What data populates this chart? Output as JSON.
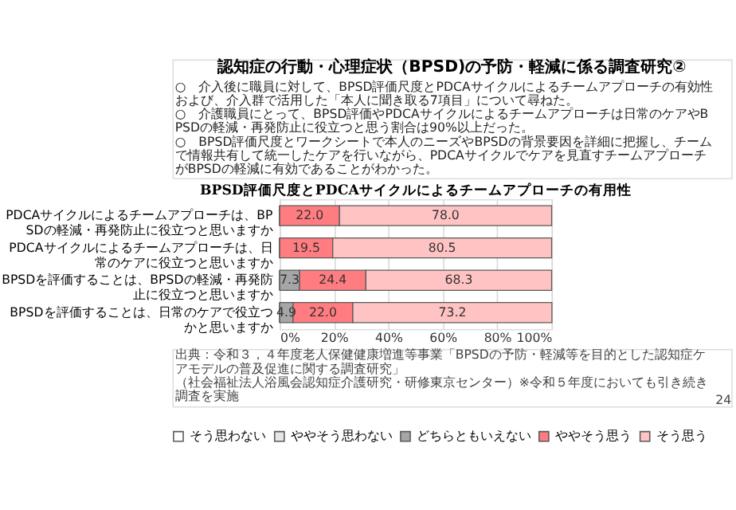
{
  "chart_data": {
    "type": "bar",
    "orientation": "horizontal",
    "stacked": true,
    "title": "BPSD評価尺度とPDCAサイクルによるチームアプローチの有用性",
    "categories": [
      "PDCAサイクルによるチームアプローチは、BPSDの軽減・再発防止に役立つと思いますか",
      "PDCAサイクルによるチームアプローチは、日常のケアに役立つと思いますか",
      "BPSDを評価することは、BPSDの軽減・再発防止に役立つと思いますか",
      "BPSDを評価することは、日常のケアで役立つかと思いますか"
    ],
    "series": [
      {
        "name": "そう思わない",
        "color": "#ffffff",
        "values": [
          0,
          0,
          0,
          0
        ],
        "value_labels": [
          null,
          null,
          null,
          null
        ]
      },
      {
        "name": "ややそう思わない",
        "color": "#e6e6e6",
        "values": [
          0,
          0,
          0,
          0
        ],
        "value_labels": [
          null,
          null,
          null,
          null
        ]
      },
      {
        "name": "どちらともいえない",
        "color": "#a6a6a6",
        "values": [
          0,
          0,
          7.3,
          4.9
        ],
        "value_labels": [
          null,
          null,
          "7.3",
          "4.9"
        ]
      },
      {
        "name": "ややそう思う",
        "color": "#ff7c80",
        "values": [
          22.0,
          19.5,
          24.4,
          22.0
        ],
        "value_labels": [
          "22.0",
          "19.5",
          "24.4",
          "22.0"
        ]
      },
      {
        "name": "そう思う",
        "color": "#ffc3c3",
        "values": [
          78.0,
          80.5,
          68.3,
          73.2
        ],
        "value_labels": [
          "78.0",
          "80.5",
          "68.3",
          "73.2"
        ]
      }
    ],
    "xlim": [
      0,
      100
    ],
    "xticks": [
      {
        "value": 0,
        "label": "0%"
      },
      {
        "value": 20,
        "label": "20%"
      },
      {
        "value": 40,
        "label": "40%"
      },
      {
        "value": 60,
        "label": "60%"
      },
      {
        "value": 80,
        "label": "80%"
      },
      {
        "value": 100,
        "label": "100%"
      }
    ],
    "grid": "x",
    "legend": "bottom",
    "annotations": [
      "認知症の行動・心理症状（BPSD)の予防・軽減に係る調査研究②",
      "○　介入後に職員に対して、BPSD評価尺度とPDCAサイクルによるチームアプローチの有効性および、介入群で活用した「本人に聞き取る7項目」について尋ねた。",
      "○　介護職員にとって、BPSD評価やPDCAサイクルによるチームアプローチは日常のケアやBPSDの軽減・再発防止に役立つと思う割合は90%以上だった。",
      "○　BPSD評価尺度とワークシートで本人のニーズやBPSDの背景要因を詳細に把握し、チームで情報共有して統一したケアを行いながら、PDCAサイクルでケアを見直すチームアプローチがBPSDの軽減に有効であることがわかった。",
      "出典：令和３，４年度老人保健健康増進等事業「BPSDの予防・軽減等を目的とした認知症ケアモデルの普及促進に関する調査研究」",
      "（社会福祉法人浴風会認知症介護研究・研修東京センター）※令和５年度においても引き続き調査を実施",
      "24"
    ]
  }
}
